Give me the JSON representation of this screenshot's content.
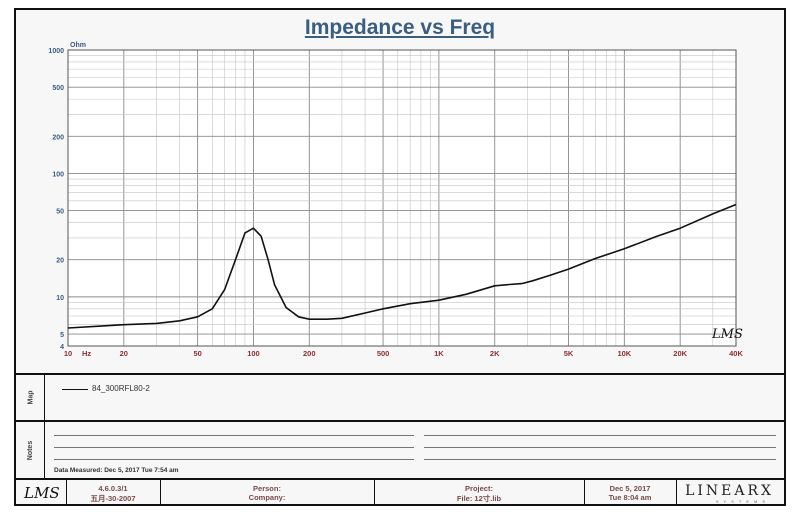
{
  "title": "Impedance vs Freq",
  "chart_data": {
    "type": "line",
    "title": "Impedance vs Freq",
    "ylabel": "Ohm",
    "xlabel": "Hz",
    "x_scale": "log",
    "y_scale": "log",
    "xlim": [
      10,
      40000
    ],
    "ylim": [
      4,
      1000
    ],
    "x_ticks": [
      {
        "value": 10,
        "label": "10"
      },
      {
        "value": 20,
        "label": "20"
      },
      {
        "value": 50,
        "label": "50"
      },
      {
        "value": 100,
        "label": "100"
      },
      {
        "value": 200,
        "label": "200"
      },
      {
        "value": 500,
        "label": "500"
      },
      {
        "value": 1000,
        "label": "1K"
      },
      {
        "value": 2000,
        "label": "2K"
      },
      {
        "value": 5000,
        "label": "5K"
      },
      {
        "value": 10000,
        "label": "10K"
      },
      {
        "value": 20000,
        "label": "20K"
      },
      {
        "value": 40000,
        "label": "40K"
      }
    ],
    "x_unit_label": "Hz",
    "y_ticks": [
      {
        "value": 4,
        "label": "4"
      },
      {
        "value": 5,
        "label": "5"
      },
      {
        "value": 10,
        "label": "10"
      },
      {
        "value": 20,
        "label": "20"
      },
      {
        "value": 50,
        "label": "50"
      },
      {
        "value": 100,
        "label": "100"
      },
      {
        "value": 200,
        "label": "200"
      },
      {
        "value": 500,
        "label": "500"
      },
      {
        "value": 1000,
        "label": "1000"
      }
    ],
    "grid": true,
    "series": [
      {
        "name": "84_300RFL80-2",
        "color": "#111111",
        "x": [
          10,
          15,
          20,
          30,
          40,
          50,
          60,
          70,
          80,
          90,
          100,
          110,
          120,
          130,
          150,
          175,
          200,
          250,
          300,
          400,
          500,
          700,
          1000,
          1400,
          2000,
          2400,
          2800,
          3200,
          4000,
          5000,
          7000,
          10000,
          15000,
          20000,
          30000,
          40000
        ],
        "y": [
          5.6,
          5.8,
          5.95,
          6.1,
          6.4,
          6.9,
          8.0,
          11.5,
          20,
          33,
          36,
          31,
          20,
          12.5,
          8.2,
          6.9,
          6.6,
          6.6,
          6.7,
          7.4,
          8.0,
          8.8,
          9.4,
          10.5,
          12.3,
          12.6,
          12.8,
          13.5,
          15.0,
          16.8,
          20.5,
          24.5,
          31,
          36,
          47,
          56
        ]
      }
    ]
  },
  "watermark": "LMS",
  "legend": {
    "section_label": "Map",
    "entry": "84_300RFL80-2"
  },
  "notes": {
    "section_label": "Notes",
    "measured": "Data Measured: Dec 5, 2017  Tue  7:54 am"
  },
  "footer": {
    "logo": "LMS",
    "version": "4.6.0.3/1",
    "version_date": "五月-30-2007",
    "person_label": "Person:",
    "company_label": "Company:",
    "project_label": "Project:",
    "file_label": "File: 12寸.lib",
    "date": "Dec 5, 2017",
    "time": "Tue  8:04 am",
    "brand": "LINEARX",
    "brand_sub": "SYSTEMS"
  }
}
